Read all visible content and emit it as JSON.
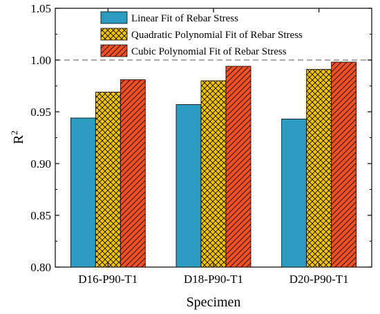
{
  "chart_data": {
    "type": "bar",
    "categories": [
      "D16-P90-T1",
      "D18-P90-T1",
      "D20-P90-T1"
    ],
    "series": [
      {
        "name": "Linear Fit of Rebar Stress",
        "values": [
          0.944,
          0.957,
          0.943
        ],
        "color": "#2b9cbf",
        "pattern": "solid"
      },
      {
        "name": "Quadratic Polynomial Fit of Rebar Stress",
        "values": [
          0.969,
          0.98,
          0.991
        ],
        "color": "#f5c400",
        "pattern": "crosshatch"
      },
      {
        "name": "Cubic Polynomial Fit of Rebar Stress",
        "values": [
          0.981,
          0.994,
          0.998
        ],
        "color": "#f04e23",
        "pattern": "diagonal"
      }
    ],
    "xlabel": "Specimen",
    "ylabel": "R",
    "ylabel_superscript": "2",
    "ylim": [
      0.8,
      1.05
    ],
    "yticks": [
      "0.80",
      "0.85",
      "0.90",
      "0.95",
      "1.00",
      "1.05"
    ],
    "reference_line": {
      "value": 1.0,
      "style": "dashed"
    },
    "grid": false,
    "legend_position": "top-left"
  }
}
